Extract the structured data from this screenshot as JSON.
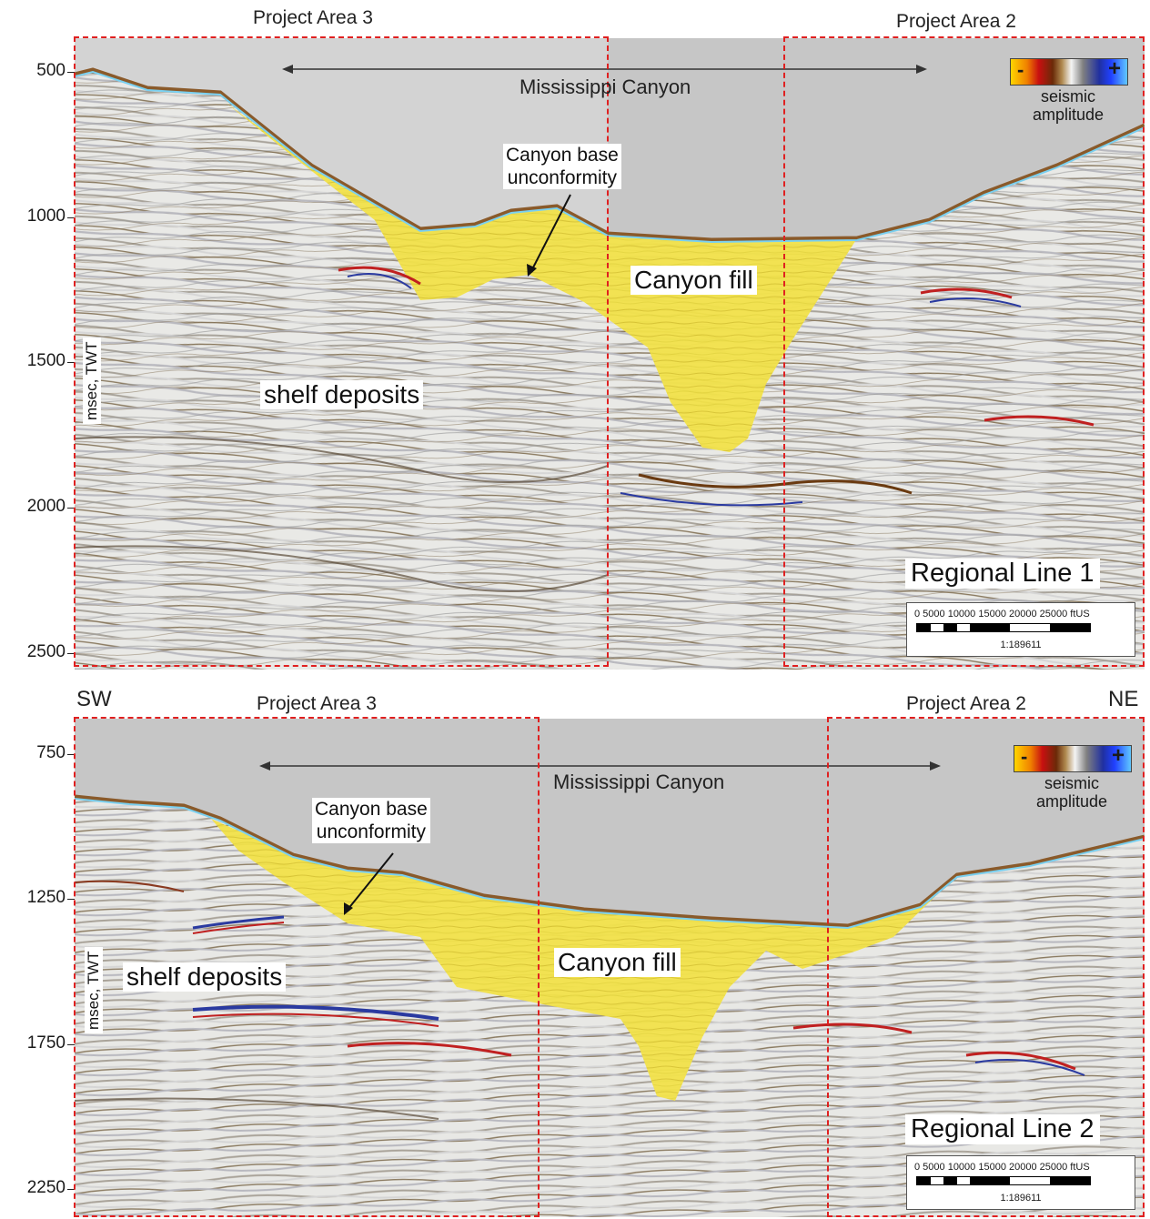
{
  "top_panel": {
    "y_ticks": [
      "500",
      "1000",
      "1500",
      "2000",
      "2500"
    ],
    "y_axis_label": "msec, TWT",
    "project_area_left": "Project Area 3",
    "project_area_right": "Project Area 2",
    "canyon_name": "Mississippi Canyon",
    "annotation": [
      "Canyon base",
      "unconformity"
    ],
    "fill_label": "Canyon fill",
    "deposits_label": "shelf deposits",
    "line_title": "Regional Line 1",
    "legend": {
      "minus": "-",
      "plus": "+",
      "line1": "seismic",
      "line2": "amplitude"
    },
    "scale": {
      "numbers": "0 5000 10000 15000 20000 25000 ftUS",
      "ratio": "1:189611"
    }
  },
  "bottom_panel": {
    "y_ticks": [
      "750",
      "1250",
      "1750",
      "2250"
    ],
    "y_axis_label": "msec, TWT",
    "project_area_left": "Project Area 3",
    "project_area_right": "Project Area 2",
    "dir_left": "SW",
    "dir_right": "NE",
    "canyon_name": "Mississippi Canyon",
    "annotation": [
      "Canyon base",
      "unconformity"
    ],
    "fill_label": "Canyon fill",
    "deposits_label": "shelf deposits",
    "line_title": "Regional Line 2",
    "legend": {
      "minus": "-",
      "plus": "+",
      "line1": "seismic",
      "line2": "amplitude"
    },
    "scale": {
      "numbers": "0 5000 10000 15000 20000 25000 ftUS",
      "ratio": "1:189611"
    }
  },
  "colors": {
    "water": "#c4c4c4",
    "canyon_fill": "#f4e640",
    "dash": "#e02020",
    "seafloor": "#7ad0f0"
  }
}
